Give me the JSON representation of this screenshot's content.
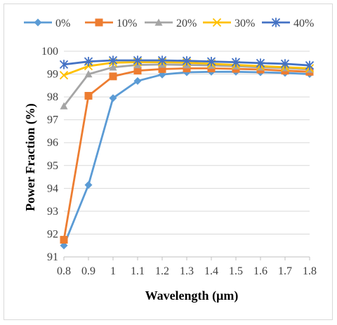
{
  "chart_data": {
    "type": "line",
    "title": "",
    "xlabel": "Wavelength (µm)",
    "ylabel": "Power Fraction (%)",
    "x": [
      0.8,
      0.9,
      1.0,
      1.1,
      1.2,
      1.3,
      1.4,
      1.5,
      1.6,
      1.7,
      1.8
    ],
    "x_tick_labels": [
      "0.8",
      "0.9",
      "1",
      "1.1",
      "1.2",
      "1.3",
      "1.4",
      "1.5",
      "1.6",
      "1.7",
      "1.8"
    ],
    "ylim": [
      91,
      100
    ],
    "y_ticks": [
      91,
      92,
      93,
      94,
      95,
      96,
      97,
      98,
      99,
      100
    ],
    "grid": "horizontal",
    "legend_position": "top",
    "series": [
      {
        "name": "0%",
        "color": "#5B9BD5",
        "marker": "diamond",
        "values": [
          91.5,
          94.15,
          97.95,
          98.7,
          98.98,
          99.08,
          99.1,
          99.1,
          99.08,
          99.05,
          99.0
        ]
      },
      {
        "name": "10%",
        "color": "#ED7D31",
        "marker": "square",
        "values": [
          91.75,
          98.05,
          98.9,
          99.15,
          99.22,
          99.25,
          99.25,
          99.23,
          99.2,
          99.15,
          99.1
        ]
      },
      {
        "name": "20%",
        "color": "#A5A5A5",
        "marker": "triangle",
        "values": [
          97.6,
          99.0,
          99.3,
          99.4,
          99.42,
          99.4,
          99.38,
          99.35,
          99.3,
          99.27,
          99.2
        ]
      },
      {
        "name": "30%",
        "color": "#FFC000",
        "marker": "x",
        "values": [
          98.95,
          99.35,
          99.5,
          99.52,
          99.52,
          99.5,
          99.45,
          99.4,
          99.35,
          99.3,
          99.25
        ]
      },
      {
        "name": "40%",
        "color": "#4472C4",
        "marker": "star",
        "values": [
          99.42,
          99.55,
          99.6,
          99.6,
          99.6,
          99.58,
          99.55,
          99.52,
          99.48,
          99.45,
          99.38
        ]
      }
    ]
  }
}
